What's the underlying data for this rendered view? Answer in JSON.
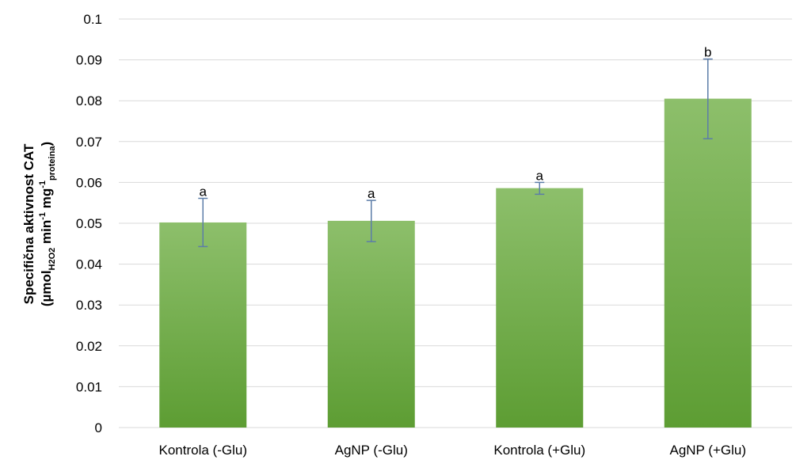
{
  "chart_data": {
    "type": "bar",
    "categories": [
      "Kontrola (-Glu)",
      "AgNP (-Glu)",
      "Kontrola (+Glu)",
      "AgNP (+Glu)"
    ],
    "values": [
      0.0502,
      0.0506,
      0.0586,
      0.0805
    ],
    "error_low": [
      0.0443,
      0.0455,
      0.0571,
      0.0707
    ],
    "error_high": [
      0.0561,
      0.0556,
      0.06,
      0.0902
    ],
    "significance_letters": [
      "a",
      "a",
      "a",
      "b"
    ],
    "ylabel_line1": "Specifična aktivnost CAT",
    "ylabel_line2": {
      "open": "(µmol",
      "sub1": "H2O2",
      "mid1": " min",
      "sup1": "-1",
      "mid2": " mg",
      "sup2": "-1",
      "sub2": "proteina",
      "close": ")"
    },
    "ylim": [
      0,
      0.1
    ],
    "yticks": [
      "0",
      "0.01",
      "0.02",
      "0.03",
      "0.04",
      "0.05",
      "0.06",
      "0.07",
      "0.08",
      "0.09",
      "0.1"
    ],
    "grid": true,
    "legend": "none",
    "colors": {
      "bar_top": "#8dbf6b",
      "bar_bottom": "#5d9d33",
      "grid": "#d9d9d9",
      "error": "#5c7da8"
    }
  }
}
